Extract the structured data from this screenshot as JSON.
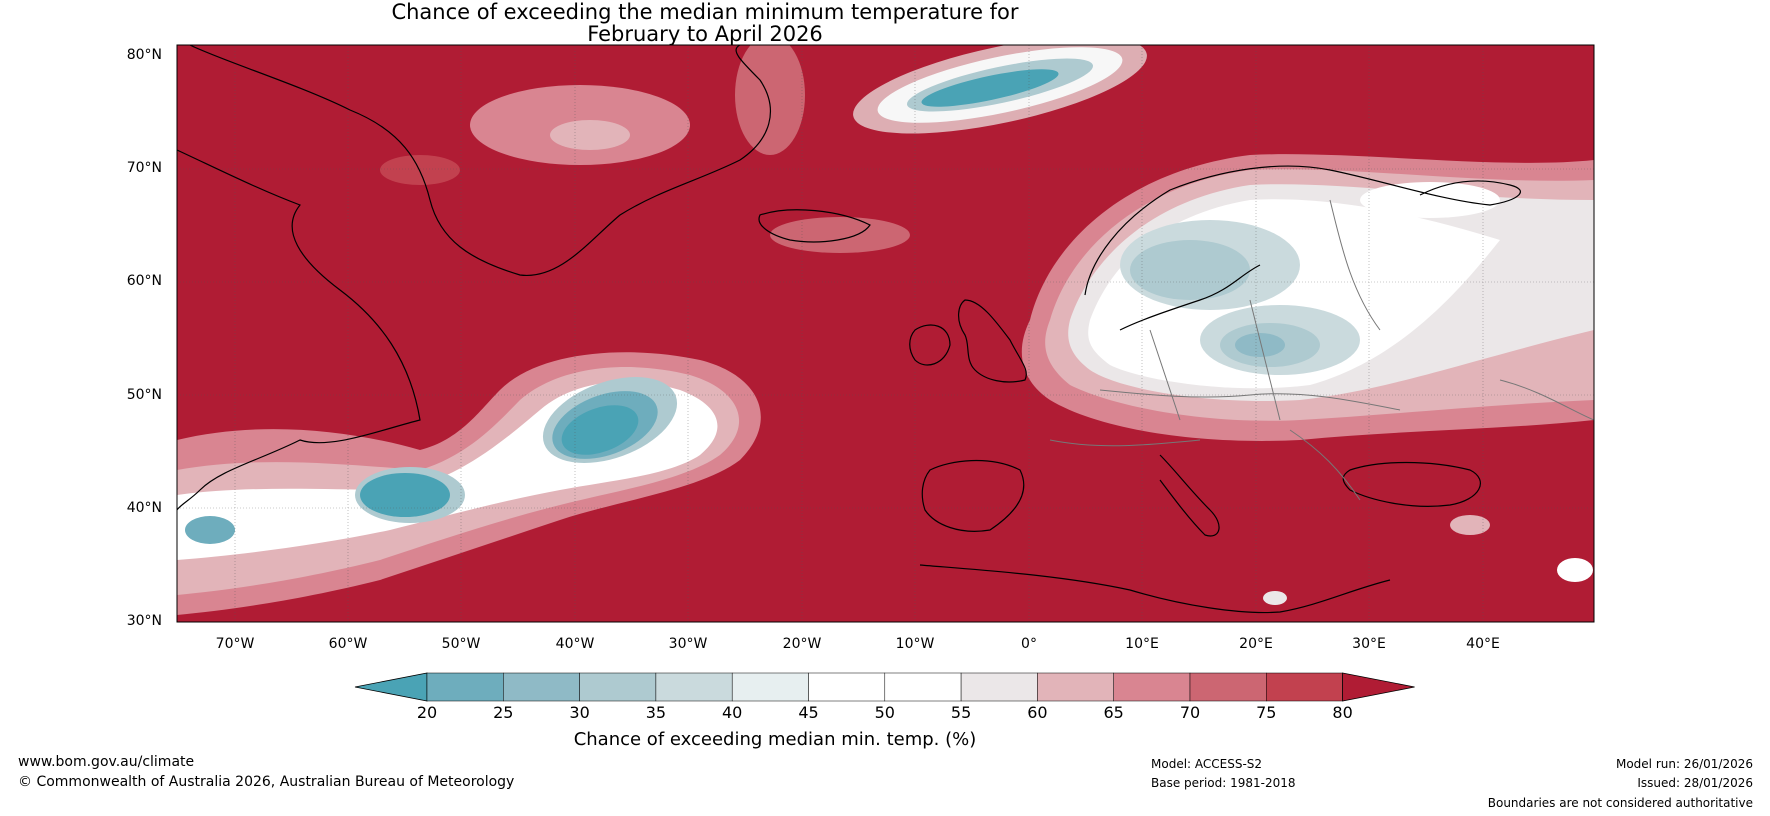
{
  "title": {
    "line1": "Chance of exceeding the median minimum temperature for",
    "line2": "February to April 2026"
  },
  "axes": {
    "lat_labels": [
      "80°N",
      "70°N",
      "60°N",
      "50°N",
      "40°N",
      "30°N"
    ],
    "lon_labels": [
      "70°W",
      "60°W",
      "50°W",
      "40°W",
      "30°W",
      "20°W",
      "10°W",
      "0°",
      "10°E",
      "20°E",
      "30°E",
      "40°E"
    ]
  },
  "colorbar": {
    "ticks": [
      "20",
      "25",
      "30",
      "35",
      "40",
      "45",
      "50",
      "55",
      "60",
      "65",
      "70",
      "75",
      "80"
    ],
    "colors": [
      "#4aa3b5",
      "#6eadbd",
      "#8fbac6",
      "#aecad0",
      "#cadadd",
      "#e7eff0",
      "#ffffff",
      "#ffffff",
      "#ebe7e8",
      "#e2b4b9",
      "#d98591",
      "#cc6672",
      "#c2414f",
      "#b01c34"
    ],
    "label": "Chance of exceeding median min. temp. (%)"
  },
  "footer": {
    "url": "www.bom.gov.au/climate",
    "copyright": "© Commonwealth of Australia 2026, Australian Bureau of Meteorology",
    "model": "Model: ACCESS-S2",
    "base_period": "Base period: 1981-2018",
    "model_run": "Model run: 26/01/2026",
    "issued": "Issued: 28/01/2026",
    "disclaimer": "Boundaries are not considered authoritative"
  }
}
